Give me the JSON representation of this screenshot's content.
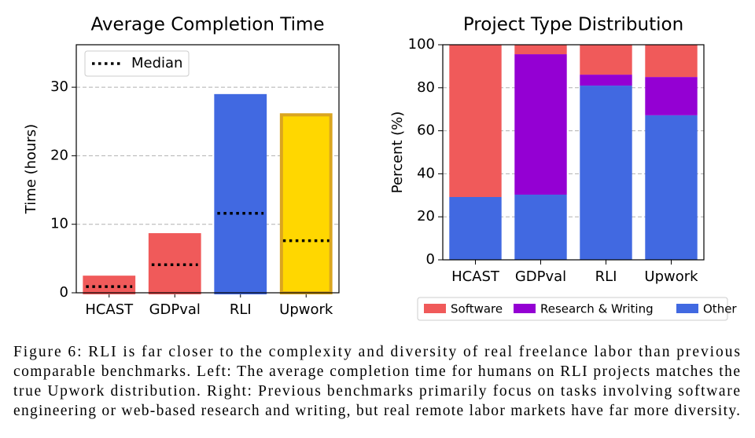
{
  "chart_data": [
    {
      "type": "bar",
      "title": "Average Completion Time",
      "ylabel": "Time (hours)",
      "categories": [
        "HCAST",
        "GDPval",
        "RLI",
        "Upwork"
      ],
      "values": [
        2.5,
        8.7,
        29.0,
        26.2
      ],
      "colors": [
        "#f05a5a",
        "#f05a5a",
        "#4169e1",
        "#ffd700"
      ],
      "edgecolors": [
        "#f05a5a",
        "#f05a5a",
        "#4169e1",
        "#daa520"
      ],
      "median": {
        "name": "Median",
        "color": "#000000",
        "values": [
          0.9,
          4.1,
          11.6,
          7.6
        ]
      },
      "ylim": [
        0,
        36.2
      ],
      "yticks": [
        0,
        10,
        20,
        30
      ],
      "grid": true,
      "legend": "upper left"
    },
    {
      "type": "stacked_bar",
      "title": "Project Type Distribution",
      "ylabel": "Percent (%)",
      "categories": [
        "HCAST",
        "GDPval",
        "RLI",
        "Upwork"
      ],
      "series": [
        {
          "name": "Other",
          "color": "#4169e1",
          "values": [
            29.2,
            30.3,
            81.0,
            67.2
          ]
        },
        {
          "name": "Research & Writing",
          "color": "#9400d3",
          "values": [
            0,
            65.3,
            5.1,
            17.8
          ]
        },
        {
          "name": "Software",
          "color": "#f05a5a",
          "values": [
            70.8,
            4.4,
            13.9,
            15.0
          ]
        }
      ],
      "legend_order": [
        2,
        1,
        0
      ],
      "ylim": [
        0,
        100
      ],
      "yticks": [
        0,
        20,
        40,
        60,
        80,
        100
      ],
      "grid": true,
      "legend": "below"
    }
  ],
  "caption": [
    "Figure 6: RLI is far closer to the complexity and diversity of real freelance labor than previous",
    "comparable benchmarks. Left: The average completion time for humans on RLI projects matches the",
    "true Upwork distribution. Right: Previous benchmarks primarily focus on tasks involving software",
    "engineering or web-based research and writing, but real remote labor markets have far more diversity."
  ]
}
